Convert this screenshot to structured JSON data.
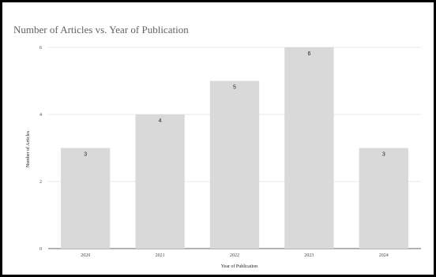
{
  "chart_data": {
    "type": "bar",
    "title": "Number of Articles vs. Year of Publication",
    "xlabel": "Year of Publication",
    "ylabel": "Number of Articles",
    "categories": [
      "2020",
      "2021",
      "2022",
      "2023",
      "2024"
    ],
    "values": [
      3,
      4,
      5,
      6,
      3
    ],
    "data_labels": [
      "3",
      "4",
      "5",
      "6",
      "3"
    ],
    "ylim": [
      0,
      6
    ],
    "yticks": [
      0,
      2,
      4,
      6
    ],
    "grid": true,
    "legend": "none",
    "bar_color": "#d9d9d9",
    "grid_color": "#e0e0e0"
  }
}
